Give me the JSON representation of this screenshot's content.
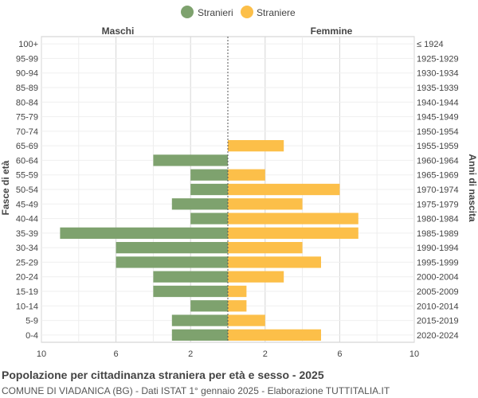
{
  "chart_data": {
    "type": "bar",
    "orientation": "horizontal-population-pyramid",
    "legend": [
      {
        "name": "Stranieri",
        "color": "#7ea26e"
      },
      {
        "name": "Straniere",
        "color": "#fcbf49"
      }
    ],
    "legend_position": "top-center",
    "left_header": "Maschi",
    "right_header": "Femmine",
    "ylabel_left": "Fasce di età",
    "ylabel_right": "Anni di nascita",
    "age_groups": [
      "100+",
      "95-99",
      "90-94",
      "85-89",
      "80-84",
      "75-79",
      "70-74",
      "65-69",
      "60-64",
      "55-59",
      "50-54",
      "45-49",
      "40-44",
      "35-39",
      "30-34",
      "25-29",
      "20-24",
      "15-19",
      "10-14",
      "5-9",
      "0-4"
    ],
    "birth_years": [
      "≤ 1924",
      "1925-1929",
      "1930-1934",
      "1935-1939",
      "1940-1944",
      "1945-1949",
      "1950-1954",
      "1955-1959",
      "1960-1964",
      "1965-1969",
      "1970-1974",
      "1975-1979",
      "1980-1984",
      "1985-1989",
      "1990-1994",
      "1995-1999",
      "2000-2004",
      "2005-2009",
      "2010-2014",
      "2015-2019",
      "2020-2024"
    ],
    "series": [
      {
        "name": "Stranieri",
        "values": [
          0,
          0,
          0,
          0,
          0,
          0,
          0,
          0,
          4,
          2,
          2,
          3,
          2,
          9,
          6,
          6,
          4,
          4,
          2,
          3,
          3
        ]
      },
      {
        "name": "Straniere",
        "values": [
          0,
          0,
          0,
          0,
          0,
          0,
          0,
          3,
          0,
          2,
          6,
          4,
          7,
          7,
          4,
          5,
          3,
          1,
          1,
          2,
          5
        ]
      }
    ],
    "x_ticks": [
      "10",
      "6",
      "2",
      "2",
      "6",
      "10"
    ],
    "x_tick_values": [
      -10,
      -6,
      -2,
      2,
      6,
      10
    ],
    "xlim": [
      -10,
      10
    ],
    "grid": true,
    "title": "Popolazione per cittadinanza straniera per età e sesso - 2025",
    "subtitle": "COMUNE DI VIADANICA (BG) - Dati ISTAT 1° gennaio 2025 - Elaborazione TUTTITALIA.IT"
  }
}
